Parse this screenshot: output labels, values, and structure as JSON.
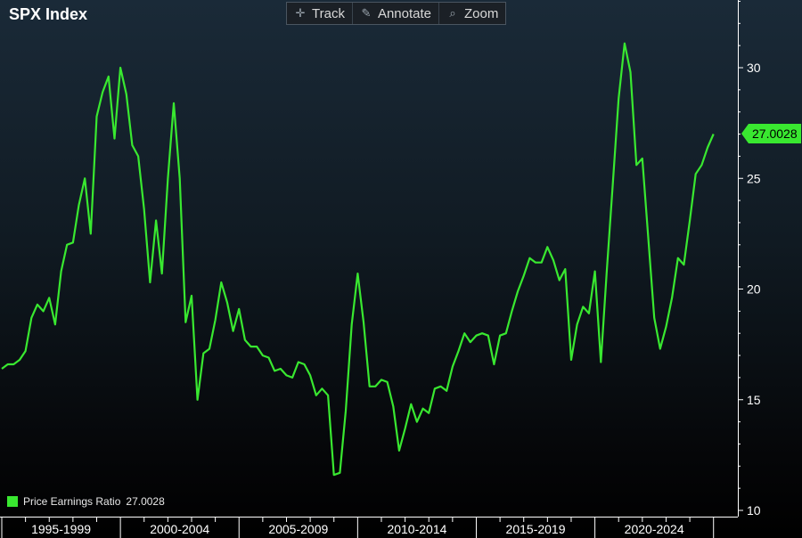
{
  "header": {
    "title": "SPX Index"
  },
  "toolbar": {
    "items": [
      {
        "label": "Track",
        "icon": "crosshair-icon"
      },
      {
        "label": "Annotate",
        "icon": "pencil-icon"
      },
      {
        "label": "Zoom",
        "icon": "magnifier-icon"
      }
    ]
  },
  "colors": {
    "line": "#39e830",
    "axis": "#ffffff",
    "background_top": "#1a2a38",
    "background_bottom": "#000000"
  },
  "legend": {
    "series_label": "Price Earnings Ratio",
    "last_value": "27.0028"
  },
  "last_value_label": "27.0028",
  "chart_data": {
    "type": "line",
    "title": "SPX Index",
    "xlabel": "",
    "ylabel": "",
    "ylim": [
      10,
      33
    ],
    "yticks": [
      10,
      15,
      20,
      25,
      30
    ],
    "x_period_labels": [
      "1995-1999",
      "2000-2004",
      "2005-2009",
      "2010-2014",
      "2015-2019",
      "2020-2024"
    ],
    "x_axis_start": 1995.0,
    "x_axis_end": 2026.1,
    "grid": false,
    "legend_position": "bottom-left",
    "series": [
      {
        "name": "Price Earnings Ratio",
        "color": "#39e830",
        "last": 27.0028,
        "points": [
          [
            1995.0,
            16.4
          ],
          [
            1995.25,
            16.6
          ],
          [
            1995.5,
            16.6
          ],
          [
            1995.75,
            16.8
          ],
          [
            1996.0,
            17.2
          ],
          [
            1996.25,
            18.7
          ],
          [
            1996.5,
            19.3
          ],
          [
            1996.75,
            19.0
          ],
          [
            1997.0,
            19.6
          ],
          [
            1997.25,
            18.4
          ],
          [
            1997.5,
            20.8
          ],
          [
            1997.75,
            22.0
          ],
          [
            1998.0,
            22.1
          ],
          [
            1998.25,
            23.8
          ],
          [
            1998.5,
            25.0
          ],
          [
            1998.75,
            22.5
          ],
          [
            1999.0,
            27.8
          ],
          [
            1999.25,
            28.9
          ],
          [
            1999.5,
            29.6
          ],
          [
            1999.75,
            26.8
          ],
          [
            2000.0,
            30.0
          ],
          [
            2000.25,
            28.8
          ],
          [
            2000.5,
            26.5
          ],
          [
            2000.75,
            26.0
          ],
          [
            2001.0,
            23.6
          ],
          [
            2001.25,
            20.3
          ],
          [
            2001.5,
            23.1
          ],
          [
            2001.75,
            20.7
          ],
          [
            2002.0,
            25.0
          ],
          [
            2002.25,
            28.4
          ],
          [
            2002.5,
            25.0
          ],
          [
            2002.75,
            18.5
          ],
          [
            2003.0,
            19.7
          ],
          [
            2003.25,
            15.0
          ],
          [
            2003.5,
            17.1
          ],
          [
            2003.75,
            17.3
          ],
          [
            2004.0,
            18.6
          ],
          [
            2004.25,
            20.3
          ],
          [
            2004.5,
            19.4
          ],
          [
            2004.75,
            18.1
          ],
          [
            2005.0,
            19.1
          ],
          [
            2005.25,
            17.7
          ],
          [
            2005.5,
            17.4
          ],
          [
            2005.75,
            17.4
          ],
          [
            2006.0,
            17.0
          ],
          [
            2006.25,
            16.9
          ],
          [
            2006.5,
            16.3
          ],
          [
            2006.75,
            16.4
          ],
          [
            2007.0,
            16.1
          ],
          [
            2007.25,
            16.0
          ],
          [
            2007.5,
            16.7
          ],
          [
            2007.75,
            16.6
          ],
          [
            2008.0,
            16.1
          ],
          [
            2008.25,
            15.2
          ],
          [
            2008.5,
            15.5
          ],
          [
            2008.75,
            15.2
          ],
          [
            2009.0,
            11.6
          ],
          [
            2009.25,
            11.7
          ],
          [
            2009.5,
            14.5
          ],
          [
            2009.75,
            18.4
          ],
          [
            2010.0,
            20.7
          ],
          [
            2010.25,
            18.5
          ],
          [
            2010.5,
            15.6
          ],
          [
            2010.75,
            15.6
          ],
          [
            2011.0,
            15.9
          ],
          [
            2011.25,
            15.8
          ],
          [
            2011.5,
            14.7
          ],
          [
            2011.75,
            12.7
          ],
          [
            2012.0,
            13.7
          ],
          [
            2012.25,
            14.8
          ],
          [
            2012.5,
            14.0
          ],
          [
            2012.75,
            14.6
          ],
          [
            2013.0,
            14.4
          ],
          [
            2013.25,
            15.5
          ],
          [
            2013.5,
            15.6
          ],
          [
            2013.75,
            15.4
          ],
          [
            2014.0,
            16.5
          ],
          [
            2014.25,
            17.2
          ],
          [
            2014.5,
            18.0
          ],
          [
            2014.75,
            17.6
          ],
          [
            2015.0,
            17.9
          ],
          [
            2015.25,
            18.0
          ],
          [
            2015.5,
            17.9
          ],
          [
            2015.75,
            16.6
          ],
          [
            2016.0,
            17.9
          ],
          [
            2016.25,
            18.0
          ],
          [
            2016.5,
            19.0
          ],
          [
            2016.75,
            19.9
          ],
          [
            2017.0,
            20.6
          ],
          [
            2017.25,
            21.4
          ],
          [
            2017.5,
            21.2
          ],
          [
            2017.75,
            21.2
          ],
          [
            2018.0,
            21.9
          ],
          [
            2018.25,
            21.3
          ],
          [
            2018.5,
            20.4
          ],
          [
            2018.75,
            20.9
          ],
          [
            2019.0,
            16.8
          ],
          [
            2019.25,
            18.4
          ],
          [
            2019.5,
            19.2
          ],
          [
            2019.75,
            18.9
          ],
          [
            2020.0,
            20.8
          ],
          [
            2020.25,
            16.7
          ],
          [
            2020.5,
            20.8
          ],
          [
            2020.75,
            24.7
          ],
          [
            2021.0,
            28.6
          ],
          [
            2021.25,
            31.1
          ],
          [
            2021.5,
            29.8
          ],
          [
            2021.75,
            25.6
          ],
          [
            2022.0,
            25.9
          ],
          [
            2022.25,
            22.3
          ],
          [
            2022.5,
            18.7
          ],
          [
            2022.75,
            17.3
          ],
          [
            2023.0,
            18.3
          ],
          [
            2023.25,
            19.6
          ],
          [
            2023.5,
            21.4
          ],
          [
            2023.75,
            21.1
          ],
          [
            2024.0,
            23.1
          ],
          [
            2024.25,
            25.2
          ],
          [
            2024.5,
            25.6
          ],
          [
            2024.75,
            26.4
          ],
          [
            2025.0,
            27.0028
          ]
        ]
      }
    ]
  }
}
